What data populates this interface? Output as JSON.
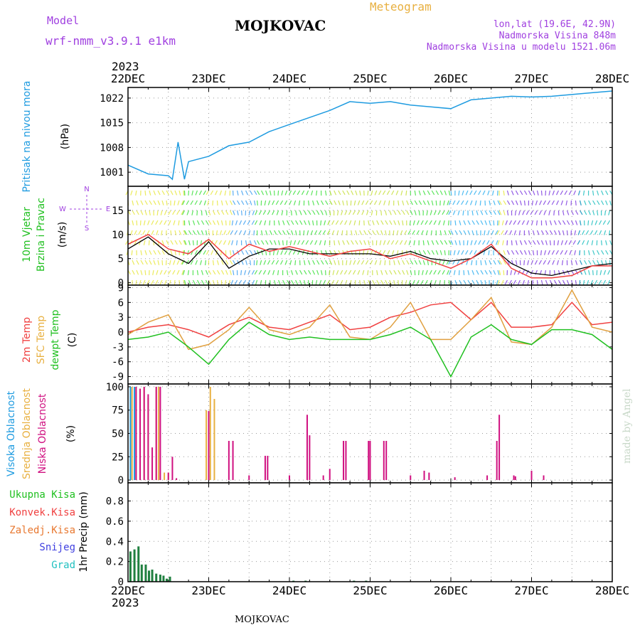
{
  "header": {
    "model_label": "Model",
    "model_name": "wrf-nmm_v3.9.1  e1km",
    "station": "MOJKOVAC",
    "meteogram_label": "Meteogram",
    "lonlat": "lon,lat (19.6E, 42.9N)",
    "altitude": "Nadmorska Visina 848m",
    "model_altitude": "Nadmorska Visina u modelu 1521.06m",
    "footer_station": "MOJKOVAC",
    "credit": "made by Angel"
  },
  "colors": {
    "purple": "#a040e0",
    "orange": "#e8b040",
    "cyan": "#1e9be0",
    "green": "#20c020",
    "red": "#f04040",
    "magenta": "#d01080",
    "blue": "#4040e0",
    "teal": "#20c0c0",
    "dark_green": "#208040",
    "sfc_orange": "#e0a040"
  },
  "time_axis": {
    "year": "2023",
    "labels": [
      "22DEC",
      "23DEC",
      "24DEC",
      "25DEC",
      "26DEC",
      "27DEC",
      "28DEC"
    ]
  },
  "chart_data": [
    {
      "type": "line",
      "ylabel_main": "Pritisak na nivou mora",
      "ylabel_unit": "(hPa)",
      "ylim": [
        997,
        1025
      ],
      "yticks": [
        1001,
        1008,
        1015,
        1022
      ],
      "grid": true,
      "x": [
        0,
        0.25,
        0.5,
        0.55,
        0.62,
        0.7,
        0.75,
        1.0,
        1.25,
        1.5,
        1.75,
        2.0,
        2.25,
        2.5,
        2.75,
        3.0,
        3.25,
        3.5,
        3.75,
        4.0,
        4.25,
        4.5,
        4.75,
        5.0,
        5.25,
        5.5,
        5.75,
        6.0
      ],
      "series": [
        {
          "color": "#1e9be0",
          "values": [
            1003,
            1000.5,
            1000,
            999,
            1009.5,
            999,
            1004,
            1005.5,
            1008.5,
            1009.5,
            1012.5,
            1014.5,
            1016.5,
            1018.5,
            1021,
            1020.5,
            1021,
            1020,
            1019.5,
            1019,
            1021.5,
            1022,
            1022.5,
            1022.3,
            1022.5,
            1023,
            1023.5,
            1024
          ]
        }
      ]
    },
    {
      "type": "line",
      "ylabel_main": "10m Vjetar",
      "ylabel_sub": "Brzina i Pravac",
      "ylabel_unit": "(m/s)",
      "compass": [
        "N",
        "E",
        "S",
        "W"
      ],
      "ylim": [
        -0.5,
        20
      ],
      "yticks": [
        0,
        5,
        10,
        15
      ],
      "grid": true,
      "x": [
        0,
        0.25,
        0.5,
        0.75,
        1.0,
        1.25,
        1.5,
        1.75,
        2.0,
        2.25,
        2.5,
        2.75,
        3.0,
        3.25,
        3.5,
        3.75,
        4.0,
        4.25,
        4.5,
        4.75,
        5.0,
        5.25,
        5.5,
        5.75,
        6.0
      ],
      "series": [
        {
          "name": "mean",
          "color": "#000000",
          "values": [
            7,
            9.5,
            6,
            4,
            8.5,
            3,
            5.5,
            7,
            7,
            6,
            6,
            6,
            6,
            5.5,
            6.5,
            5,
            4.5,
            5,
            7.5,
            4,
            2,
            1.5,
            2.5,
            3.5,
            4
          ]
        },
        {
          "name": "gust",
          "color": "#f04040",
          "values": [
            8,
            10,
            7,
            6,
            9,
            5,
            8,
            6.5,
            7.5,
            6.5,
            5.5,
            6.5,
            7,
            5,
            6,
            4.5,
            3,
            5,
            8,
            3,
            1,
            1,
            1.5,
            3.5,
            3.5
          ]
        }
      ]
    },
    {
      "type": "line",
      "ylabel_lines": [
        "2m Temp",
        "SFC Temp",
        "dewpt Temp"
      ],
      "ylabel_unit": "(C)",
      "ylim": [
        -10.5,
        9.5
      ],
      "yticks": [
        -9,
        -6,
        -3,
        0,
        3,
        6,
        9
      ],
      "grid": true,
      "x": [
        0,
        0.25,
        0.5,
        0.75,
        1.0,
        1.25,
        1.5,
        1.75,
        2.0,
        2.25,
        2.5,
        2.75,
        3.0,
        3.25,
        3.5,
        3.75,
        4.0,
        4.25,
        4.5,
        4.75,
        5.0,
        5.25,
        5.5,
        5.75,
        6.0
      ],
      "series": [
        {
          "name": "2m Temp",
          "color": "#f04040",
          "values": [
            0,
            1,
            1.5,
            0.5,
            -1,
            1.5,
            3,
            1,
            0.5,
            2,
            3.5,
            0.5,
            1,
            3,
            4,
            5.5,
            6,
            2.5,
            6,
            1,
            1,
            1.5,
            6,
            1.5,
            2
          ]
        },
        {
          "name": "SFC Temp",
          "color": "#e0a040",
          "values": [
            -0.5,
            2,
            3.5,
            -3.5,
            -2.5,
            0.5,
            5,
            0.5,
            -0.5,
            1,
            5.5,
            -1,
            -1.5,
            1,
            6,
            -1.5,
            -1.5,
            2.5,
            7,
            -2,
            -2.5,
            1,
            8.5,
            1,
            0
          ]
        },
        {
          "name": "dewpt Temp",
          "color": "#20c020",
          "values": [
            -1.5,
            -1,
            0,
            -3,
            -6.5,
            -1.5,
            2,
            -0.5,
            -1.5,
            -1,
            -1.5,
            -1.5,
            -1.5,
            -0.5,
            1,
            -1.5,
            -9,
            -1,
            1.5,
            -1.5,
            -2.5,
            0.5,
            0.5,
            -0.5,
            -3.5
          ]
        }
      ]
    },
    {
      "type": "bar",
      "ylabel_lines": [
        "Visoka Oblacnost",
        "Srednja Oblacnost",
        "Niska Oblacnost"
      ],
      "ylabel_unit": "(%)",
      "ylim": [
        -3,
        103
      ],
      "yticks": [
        0,
        25,
        50,
        75,
        100
      ],
      "grid": true,
      "series": [
        {
          "name": "Visoka Oblacnost",
          "color": "#1e9be0",
          "x": [
            0.03,
            0.08
          ],
          "values": [
            100,
            100
          ]
        },
        {
          "name": "Srednja Oblacnost",
          "color": "#e8b040",
          "x": [
            0.05,
            0.1,
            0.15,
            0.2,
            0.25,
            0.35,
            0.38,
            0.45,
            0.5,
            0.97,
            1.02,
            1.07
          ],
          "values": [
            100,
            100,
            98,
            100,
            88,
            100,
            100,
            8,
            8,
            75,
            100,
            87
          ]
        },
        {
          "name": "Niska Oblacnost",
          "color": "#d01080",
          "x": [
            0.1,
            0.15,
            0.2,
            0.25,
            0.3,
            0.35,
            0.4,
            0.5,
            0.55,
            0.6,
            1.0,
            1.25,
            1.3,
            1.5,
            1.7,
            1.73,
            2.0,
            2.22,
            2.25,
            2.42,
            2.5,
            2.67,
            2.7,
            2.98,
            3.0,
            3.17,
            3.2,
            3.5,
            3.67,
            3.73,
            4.05,
            4.45,
            4.57,
            4.6,
            4.78,
            4.8,
            5.0,
            5.15
          ],
          "values": [
            100,
            98,
            100,
            92,
            35,
            100,
            100,
            8,
            25,
            2,
            74,
            42,
            42,
            5,
            26,
            26,
            5,
            70,
            48,
            5,
            12,
            42,
            42,
            42,
            42,
            42,
            42,
            5,
            10,
            8,
            3,
            5,
            42,
            70,
            5,
            4,
            10,
            5
          ]
        }
      ]
    },
    {
      "type": "bar",
      "labels_left": [
        "Ukupna Kisa",
        "Konvek.Kisa",
        "Zaledj.Kisa",
        "Snijeg",
        "Grad"
      ],
      "ylabel_main": "1hr Precip (mm)",
      "ylim": [
        0,
        0.98
      ],
      "yticks": [
        0,
        0.2,
        0.4,
        0.6,
        0.8
      ],
      "yticklabels": [
        "0",
        "0.2",
        "0.4",
        "0.6",
        "0.8"
      ],
      "grid": true,
      "series": [
        {
          "name": "Ukupna Kisa",
          "color": "#208040",
          "x": [
            0.03,
            0.08,
            0.13,
            0.17,
            0.22,
            0.26,
            0.3,
            0.35,
            0.4,
            0.44,
            0.48,
            0.52,
            2.05,
            2.2,
            2.8,
            2.95
          ],
          "values": [
            0.3,
            0.32,
            0.35,
            0.17,
            0.17,
            0.11,
            0.12,
            0.08,
            0.07,
            0.06,
            0.03,
            0.05,
            0.01,
            0.01,
            0.01,
            0.01
          ]
        }
      ]
    }
  ]
}
